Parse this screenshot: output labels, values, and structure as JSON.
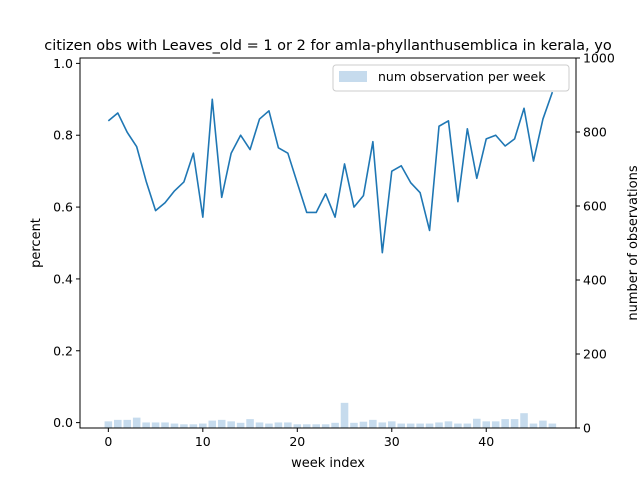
{
  "chart_data": {
    "type": "line",
    "title": "citizen obs with Leaves_old = 1 or 2 for amla-phyllanthusemblica in kerala, yo",
    "xlabel": "week index",
    "ylabel": "percent",
    "y2label": "number of observations",
    "xlim": [
      -3,
      49.5
    ],
    "ylim": [
      -0.015,
      1.015
    ],
    "y2lim": [
      0,
      1000
    ],
    "xticks": [
      0,
      10,
      20,
      30,
      40
    ],
    "yticks": [
      0.0,
      0.2,
      0.4,
      0.6,
      0.8,
      1.0
    ],
    "y2ticks": [
      0,
      200,
      400,
      600,
      800,
      1000
    ],
    "x": [
      0,
      1,
      2,
      3,
      4,
      5,
      6,
      7,
      8,
      9,
      10,
      11,
      12,
      13,
      14,
      15,
      16,
      17,
      18,
      19,
      20,
      21,
      22,
      23,
      24,
      25,
      26,
      27,
      28,
      29,
      30,
      31,
      32,
      33,
      34,
      35,
      36,
      37,
      38,
      39,
      40,
      41,
      42,
      43,
      44,
      45,
      46,
      47
    ],
    "series": [
      {
        "values": [
          0.84,
          0.862,
          0.808,
          0.768,
          0.672,
          0.59,
          0.612,
          0.645,
          0.67,
          0.75,
          0.572,
          0.9,
          0.627,
          0.75,
          0.8,
          0.76,
          0.845,
          0.868,
          0.765,
          0.75,
          0.667,
          0.585,
          0.585,
          0.637,
          0.572,
          0.72,
          0.6,
          0.632,
          0.782,
          0.473,
          0.7,
          0.715,
          0.668,
          0.64,
          0.535,
          0.825,
          0.84,
          0.615,
          0.818,
          0.68,
          0.79,
          0.8,
          0.77,
          0.79,
          0.875,
          0.728,
          0.845,
          0.92
        ],
        "axis": "left",
        "color": "#1f77b4"
      },
      {
        "name": "num observation per week",
        "values": [
          18,
          22,
          22,
          28,
          15,
          15,
          15,
          12,
          10,
          10,
          12,
          20,
          22,
          18,
          14,
          24,
          15,
          12,
          15,
          15,
          10,
          10,
          10,
          10,
          14,
          68,
          14,
          17,
          22,
          15,
          18,
          12,
          12,
          12,
          12,
          15,
          18,
          12,
          12,
          25,
          18,
          18,
          24,
          24,
          40,
          12,
          20,
          12
        ],
        "axis": "right",
        "type": "bar",
        "color": "#c6dbed"
      }
    ],
    "legend": {
      "position": "top-right"
    }
  }
}
